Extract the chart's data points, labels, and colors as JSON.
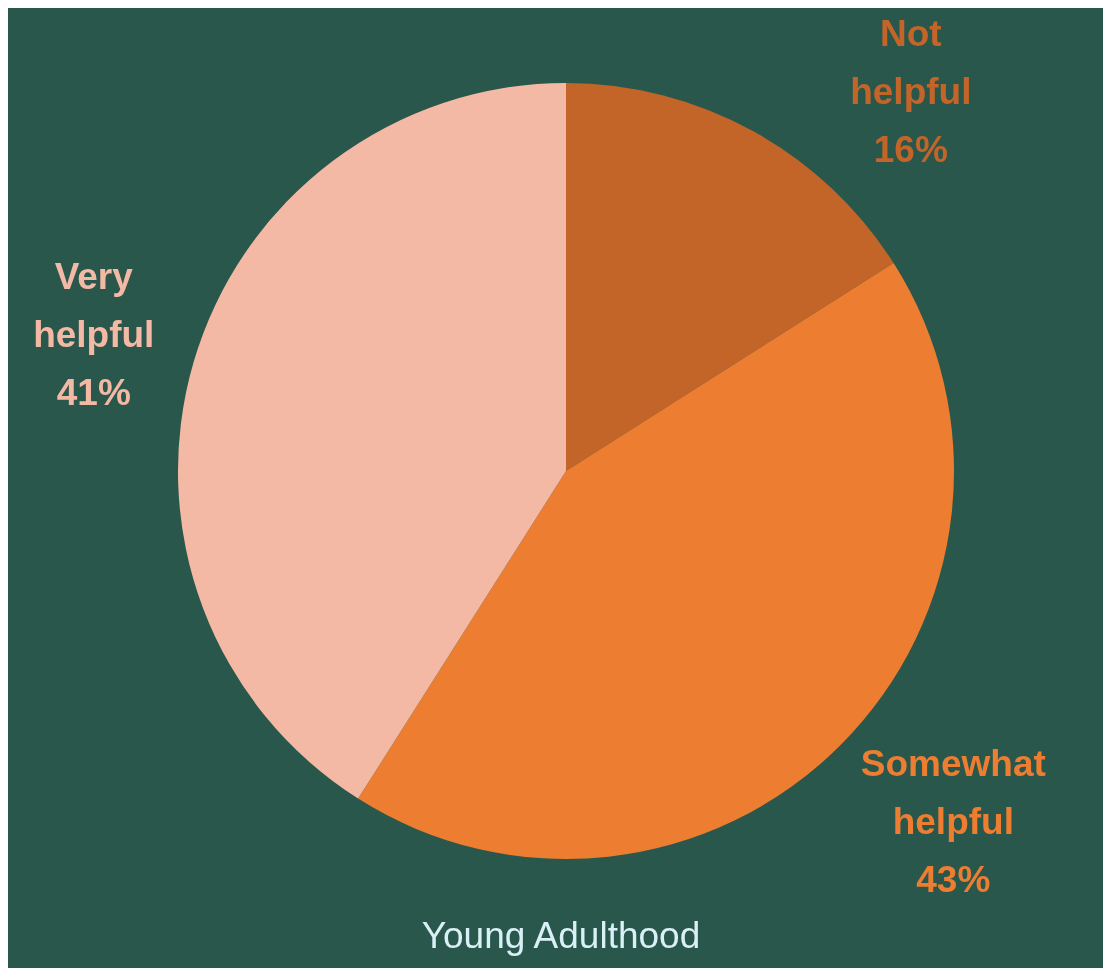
{
  "chart_data": {
    "type": "pie",
    "title": "Young Adulthood",
    "categories": [
      "Not helpful",
      "Somewhat helpful",
      "Very helpful"
    ],
    "values": [
      16,
      43,
      41
    ],
    "value_labels": [
      "16%",
      "43%",
      "41%"
    ],
    "colors": [
      "#c36528",
      "#ed7d31",
      "#f4b9a5"
    ]
  }
}
